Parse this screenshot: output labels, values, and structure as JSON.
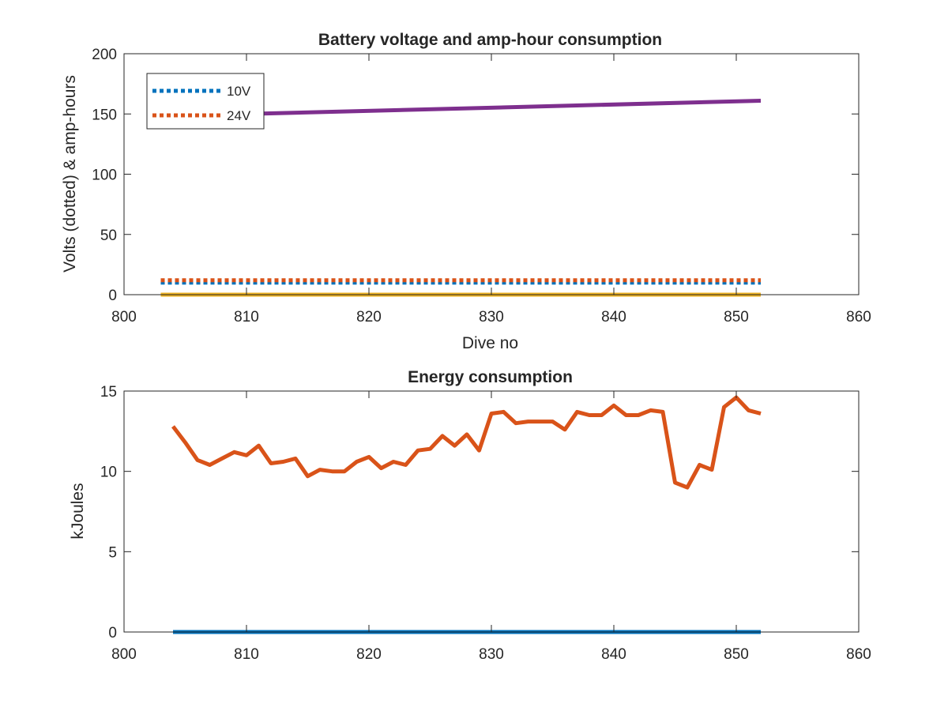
{
  "chart_data": [
    {
      "type": "line",
      "title": "Battery voltage and amp-hour consumption",
      "xlabel": "Dive no",
      "ylabel": "Volts (dotted) & amp-hours",
      "xlim": [
        800,
        860
      ],
      "ylim": [
        0,
        200
      ],
      "xticks": [
        "800",
        "810",
        "820",
        "830",
        "840",
        "850",
        "860"
      ],
      "yticks": [
        "0",
        "50",
        "100",
        "150",
        "200"
      ],
      "legend": {
        "placement": "top-left",
        "entries": [
          "10V",
          "24V"
        ]
      },
      "series": [
        {
          "name": "10V",
          "style": "dotted",
          "color": "#0072BD",
          "x": [
            803,
            852
          ],
          "y": [
            10,
            10
          ]
        },
        {
          "name": "24V",
          "style": "dotted",
          "color": "#D95319",
          "x": [
            803,
            852
          ],
          "y": [
            12,
            12
          ]
        },
        {
          "style": "solid",
          "color": "#EDB120",
          "x": [
            803,
            852
          ],
          "y": [
            0,
            0
          ]
        },
        {
          "style": "solid",
          "color": "#7E2F8E",
          "x": [
            810,
            852
          ],
          "y": [
            150,
            161
          ]
        }
      ]
    },
    {
      "type": "line",
      "title": "Energy consumption",
      "xlabel": "",
      "ylabel": "kJoules",
      "xlim": [
        800,
        860
      ],
      "ylim": [
        0,
        15
      ],
      "xticks": [
        "800",
        "810",
        "820",
        "830",
        "840",
        "850",
        "860"
      ],
      "yticks": [
        "0",
        "5",
        "10",
        "15"
      ],
      "series": [
        {
          "style": "solid",
          "color": "#0072BD",
          "x": [
            804,
            852
          ],
          "y": [
            0,
            0
          ]
        },
        {
          "style": "solid",
          "color": "#D95319",
          "x": [
            804,
            805,
            806,
            807,
            808,
            809,
            810,
            811,
            812,
            813,
            814,
            815,
            816,
            817,
            818,
            819,
            820,
            821,
            822,
            823,
            824,
            825,
            826,
            827,
            828,
            829,
            830,
            831,
            832,
            833,
            834,
            835,
            836,
            837,
            838,
            839,
            840,
            841,
            842,
            843,
            844,
            845,
            846,
            847,
            848,
            849,
            850,
            851,
            852
          ],
          "y": [
            12.8,
            11.8,
            10.7,
            10.4,
            10.8,
            11.2,
            11.0,
            11.6,
            10.5,
            10.6,
            10.8,
            9.7,
            10.1,
            10.0,
            10.0,
            10.6,
            10.9,
            10.2,
            10.6,
            10.4,
            11.3,
            11.4,
            12.2,
            11.6,
            12.3,
            11.3,
            13.6,
            13.7,
            13.0,
            13.1,
            13.1,
            13.1,
            12.6,
            13.7,
            13.5,
            13.5,
            14.1,
            13.5,
            13.5,
            13.8,
            13.7,
            9.3,
            9.0,
            10.4,
            10.1,
            14.0,
            14.6,
            13.8,
            13.6
          ]
        }
      ]
    }
  ]
}
